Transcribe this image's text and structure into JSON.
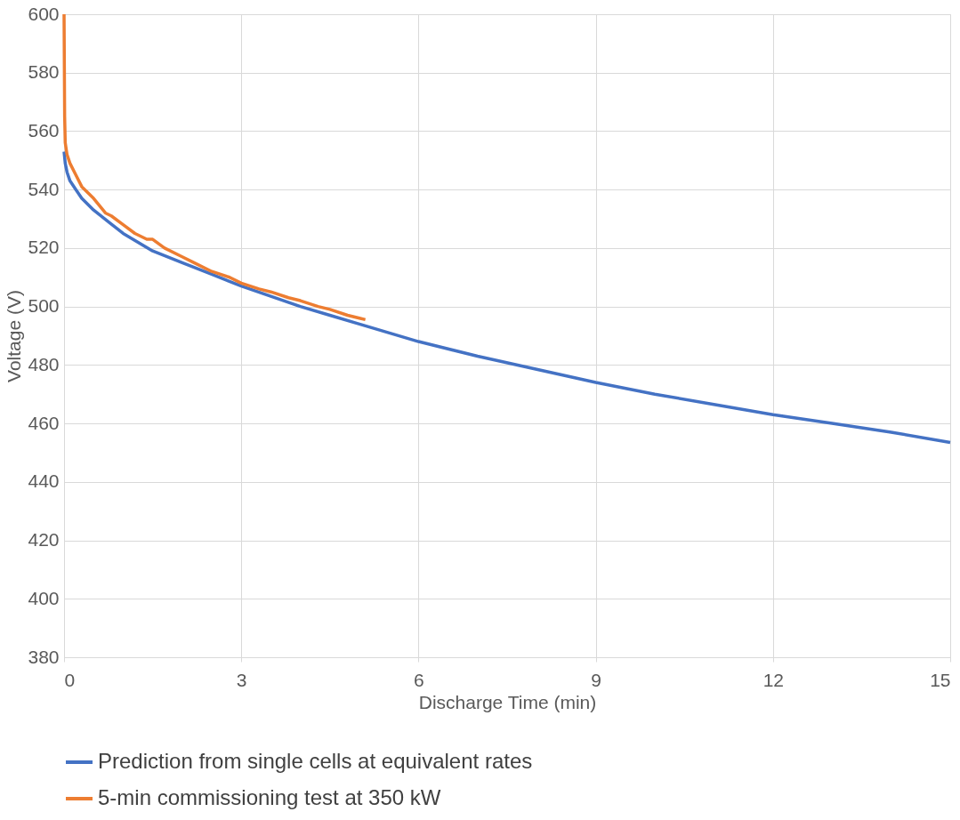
{
  "chart_data": {
    "type": "line",
    "xlabel": "Discharge Time (min)",
    "ylabel": "Voltage (V)",
    "xlim": [
      0,
      15
    ],
    "xticks": [
      0,
      3,
      6,
      9,
      12,
      15
    ],
    "ylim": [
      380,
      600
    ],
    "yticks": [
      380,
      400,
      420,
      440,
      460,
      480,
      500,
      520,
      540,
      560,
      580,
      600
    ],
    "grid": true,
    "legend": "bottom",
    "marker": "none",
    "line_style": "solid",
    "series": [
      {
        "name": "Prediction from single cells at equivalent rates",
        "color": "#4472c4",
        "x": [
          0,
          0.02,
          0.05,
          0.1,
          0.2,
          0.3,
          0.5,
          0.75,
          1,
          1.5,
          2,
          2.5,
          3,
          3.5,
          4,
          4.5,
          5,
          6,
          7,
          8,
          9,
          10,
          11,
          12,
          13,
          14,
          15
        ],
        "values": [
          553,
          549,
          546,
          543,
          540,
          537,
          533,
          529,
          525,
          519,
          515,
          511,
          507,
          503.5,
          500,
          497,
          494,
          488,
          483,
          478.5,
          474,
          470,
          466.5,
          463,
          460,
          457,
          453.5
        ]
      },
      {
        "name": "5-min commissioning test at 350 kW",
        "color": "#ed7d31",
        "x": [
          0,
          0.01,
          0.02,
          0.05,
          0.1,
          0.2,
          0.3,
          0.5,
          0.7,
          0.8,
          1,
          1.2,
          1.4,
          1.5,
          1.7,
          2,
          2.2,
          2.5,
          2.8,
          3,
          3.3,
          3.5,
          3.8,
          4,
          4.3,
          4.5,
          4.8,
          5,
          5.1
        ],
        "values": [
          600,
          565,
          556,
          552,
          549,
          545,
          541,
          537,
          532,
          531,
          528,
          525,
          523,
          523,
          520,
          517,
          515,
          512,
          510,
          508,
          506,
          505,
          503,
          502,
          500,
          499,
          497,
          496,
          495.5
        ]
      }
    ]
  }
}
